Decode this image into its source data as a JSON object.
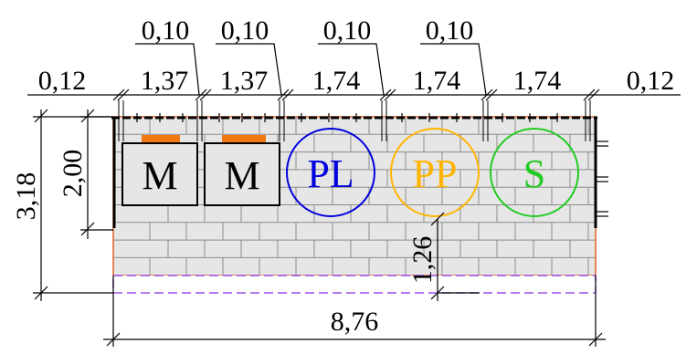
{
  "dimensions": {
    "top_row": [
      "0,12",
      "1,37",
      "1,37",
      "1,74",
      "1,74",
      "1,74",
      "0,12"
    ],
    "gaps": [
      "0,10",
      "0,10",
      "0,10",
      "0,10"
    ],
    "height_total": "3,18",
    "height_upper": "2,00",
    "height_lower": "1,26",
    "width_total": "8,76"
  },
  "modules": [
    {
      "label": "M"
    },
    {
      "label": "M"
    }
  ],
  "circles": [
    {
      "label": "PL",
      "color": "#0000dd"
    },
    {
      "label": "PP",
      "color": "#ffb400"
    },
    {
      "label": "S",
      "color": "#22cc22"
    }
  ],
  "colors": {
    "wall_fill": "#e6e6e6",
    "brick_line": "#8c8c8c",
    "wall_outline": "#e0602a",
    "module_cap": "#f07810",
    "base_strip": "#9a4ee8"
  }
}
